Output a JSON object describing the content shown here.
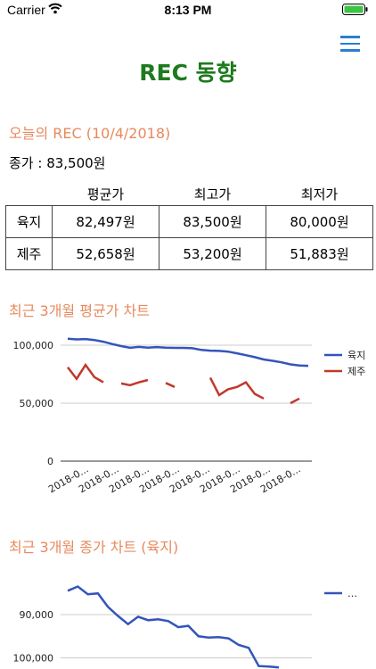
{
  "status": {
    "carrier": "Carrier",
    "time": "8:13 PM"
  },
  "header": {
    "title": "REC 동향"
  },
  "today": {
    "heading": "오늘의 REC (10/4/2018)",
    "close_label": "종가 : 83,500원"
  },
  "table": {
    "columns": [
      "",
      "평균가",
      "최고가",
      "최저가"
    ],
    "rows": [
      {
        "name": "육지",
        "avg": "82,497원",
        "high": "83,500원",
        "low": "80,000원"
      },
      {
        "name": "제주",
        "avg": "52,658원",
        "high": "53,200원",
        "low": "51,883원"
      }
    ]
  },
  "chart1_heading": "최근 3개월 평균가 차트",
  "chart2_heading": "최근 3개월 종가 차트 (육지)",
  "colors": {
    "accent": "#e8895e",
    "title": "#1e7a1e",
    "series_land": "#3355bb",
    "series_jeju": "#c0392b"
  },
  "chart_data": [
    {
      "type": "line",
      "ylim": [
        0,
        100000
      ],
      "yticks": [
        "0",
        "50,000",
        "100,000"
      ],
      "xticklabels": [
        "2018-0...",
        "2018-0...",
        "2018-0...",
        "2018-0...",
        "2018-0...",
        "2018-0...",
        "2018-0...",
        "2018-0..."
      ],
      "legend": "right",
      "series": [
        {
          "name": "육지",
          "values": [
            105500,
            105000,
            105300,
            104500,
            103000,
            101000,
            99200,
            97800,
            98500,
            97900,
            98400,
            97900,
            97700,
            97700,
            97400,
            95900,
            95300,
            95100,
            94500,
            93000,
            91400,
            89700,
            87700,
            86500,
            85200,
            83500,
            82500,
            82200
          ]
        },
        {
          "name": "제주",
          "values": [
            81000,
            71000,
            83000,
            72500,
            68000,
            null,
            67000,
            65500,
            68000,
            70000,
            null,
            67500,
            64000,
            null,
            67000,
            null,
            72000,
            57000,
            62000,
            64000,
            68000,
            58000,
            54000,
            null,
            null,
            50000,
            54000,
            null
          ]
        }
      ]
    },
    {
      "type": "line",
      "yticks": [
        "90,000",
        "100,000"
      ],
      "legend": "…",
      "series": [
        {
          "name": "",
          "values": [
            105500,
            106500,
            104700,
            104900,
            101800,
            99700,
            97800,
            99500,
            98700,
            98900,
            98500,
            97100,
            97400,
            95000,
            94700,
            94800,
            94500,
            93000,
            92300,
            88100,
            88000,
            87800
          ]
        }
      ]
    }
  ]
}
